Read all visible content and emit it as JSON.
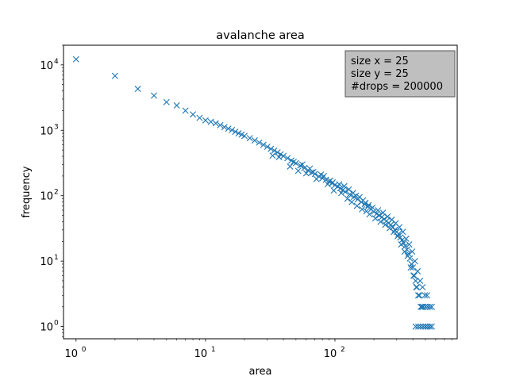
{
  "chart_data": {
    "type": "scatter",
    "title": "avalanche area",
    "xlabel": "area",
    "ylabel": "frequency",
    "xscale": "log",
    "yscale": "log",
    "xlim": [
      0.8,
      880
    ],
    "ylim": [
      0.65,
      20000
    ],
    "grid": false,
    "x_ticks": [
      {
        "value": 1,
        "base": "10",
        "exp": "0"
      },
      {
        "value": 10,
        "base": "10",
        "exp": "1"
      },
      {
        "value": 100,
        "base": "10",
        "exp": "2"
      }
    ],
    "y_ticks": [
      {
        "value": 1,
        "base": "10",
        "exp": "0"
      },
      {
        "value": 10,
        "base": "10",
        "exp": "1"
      },
      {
        "value": 100,
        "base": "10",
        "exp": "2"
      },
      {
        "value": 1000,
        "base": "10",
        "exp": "3"
      },
      {
        "value": 10000,
        "base": "10",
        "exp": "4"
      }
    ],
    "marker": "x",
    "marker_color": "#1f77b4",
    "annotation": {
      "placement": "top-right",
      "lines": [
        "size x = 25",
        "size y = 25",
        "#drops = 200000"
      ],
      "background": "#bfbfbf"
    },
    "series": [
      {
        "points": [
          [
            1,
            12200
          ],
          [
            2,
            6800
          ],
          [
            3,
            4300
          ],
          [
            4,
            3400
          ],
          [
            5,
            2700
          ],
          [
            6,
            2400
          ],
          [
            7,
            2000
          ],
          [
            8,
            1750
          ],
          [
            9,
            1550
          ],
          [
            10,
            1420
          ],
          [
            11,
            1350
          ],
          [
            12,
            1280
          ],
          [
            13,
            1200
          ],
          [
            14,
            1120
          ],
          [
            15,
            1060
          ],
          [
            16,
            1010
          ],
          [
            17,
            950
          ],
          [
            18,
            900
          ],
          [
            19,
            860
          ],
          [
            20,
            820
          ],
          [
            22,
            760
          ],
          [
            24,
            700
          ],
          [
            26,
            650
          ],
          [
            28,
            600
          ],
          [
            30,
            560
          ],
          [
            32,
            520
          ],
          [
            34,
            490
          ],
          [
            36,
            460
          ],
          [
            38,
            430
          ],
          [
            40,
            405
          ],
          [
            43,
            375
          ],
          [
            46,
            345
          ],
          [
            50,
            315
          ],
          [
            54,
            290
          ],
          [
            58,
            265
          ],
          [
            62,
            245
          ],
          [
            66,
            228
          ],
          [
            70,
            215
          ],
          [
            75,
            198
          ],
          [
            80,
            185
          ],
          [
            85,
            175
          ],
          [
            90,
            165
          ],
          [
            95,
            155
          ],
          [
            100,
            145
          ],
          [
            105,
            138
          ],
          [
            110,
            130
          ],
          [
            115,
            122
          ],
          [
            120,
            115
          ],
          [
            130,
            105
          ],
          [
            140,
            96
          ],
          [
            150,
            88
          ],
          [
            160,
            80
          ],
          [
            170,
            74
          ],
          [
            180,
            68
          ],
          [
            190,
            62
          ],
          [
            200,
            57
          ],
          [
            210,
            53
          ],
          [
            220,
            50
          ],
          [
            230,
            47
          ],
          [
            240,
            44
          ],
          [
            250,
            41
          ],
          [
            260,
            38
          ],
          [
            270,
            36
          ],
          [
            280,
            33
          ],
          [
            290,
            30
          ],
          [
            300,
            28
          ],
          [
            310,
            26
          ],
          [
            320,
            23
          ],
          [
            330,
            21
          ],
          [
            340,
            19
          ],
          [
            350,
            17
          ],
          [
            360,
            15
          ],
          [
            370,
            13
          ],
          [
            380,
            11
          ],
          [
            390,
            9
          ],
          [
            400,
            8
          ],
          [
            410,
            6
          ],
          [
            420,
            5
          ],
          [
            430,
            4
          ],
          [
            440,
            3
          ],
          [
            450,
            3
          ],
          [
            460,
            2
          ],
          [
            470,
            2
          ],
          [
            480,
            2
          ],
          [
            500,
            2
          ],
          [
            520,
            2
          ],
          [
            540,
            2
          ],
          [
            560,
            2
          ],
          [
            420,
            1
          ],
          [
            440,
            1
          ],
          [
            460,
            1
          ],
          [
            480,
            1
          ],
          [
            500,
            1
          ],
          [
            520,
            1
          ],
          [
            540,
            1
          ],
          [
            560,
            1
          ],
          [
            45,
            280
          ],
          [
            52,
            240
          ],
          [
            60,
            220
          ],
          [
            72,
            180
          ],
          [
            88,
            150
          ],
          [
            98,
            120
          ],
          [
            112,
            110
          ],
          [
            125,
            90
          ],
          [
            135,
            80
          ],
          [
            148,
            70
          ],
          [
            162,
            62
          ],
          [
            175,
            58
          ],
          [
            185,
            52
          ],
          [
            205,
            45
          ],
          [
            225,
            40
          ],
          [
            245,
            36
          ],
          [
            265,
            32
          ],
          [
            285,
            28
          ],
          [
            305,
            24
          ],
          [
            325,
            18
          ],
          [
            345,
            14
          ],
          [
            365,
            12
          ],
          [
            385,
            8
          ],
          [
            405,
            6
          ],
          [
            425,
            4
          ],
          [
            33,
            410
          ],
          [
            37,
            390
          ],
          [
            48,
            330
          ],
          [
            56,
            300
          ],
          [
            64,
            260
          ],
          [
            68,
            230
          ],
          [
            78,
            210
          ],
          [
            82,
            200
          ],
          [
            92,
            170
          ],
          [
            96,
            160
          ],
          [
            108,
            150
          ],
          [
            118,
            140
          ],
          [
            128,
            125
          ],
          [
            138,
            110
          ],
          [
            145,
            100
          ],
          [
            155,
            95
          ],
          [
            165,
            85
          ],
          [
            172,
            78
          ],
          [
            182,
            72
          ],
          [
            195,
            66
          ],
          [
            215,
            60
          ],
          [
            235,
            55
          ],
          [
            255,
            48
          ],
          [
            275,
            43
          ],
          [
            295,
            38
          ],
          [
            315,
            33
          ],
          [
            335,
            28
          ],
          [
            355,
            22
          ],
          [
            375,
            18
          ],
          [
            395,
            14
          ],
          [
            415,
            10
          ],
          [
            435,
            7
          ],
          [
            455,
            5
          ],
          [
            475,
            4
          ],
          [
            495,
            3
          ],
          [
            515,
            3
          ]
        ]
      }
    ]
  }
}
